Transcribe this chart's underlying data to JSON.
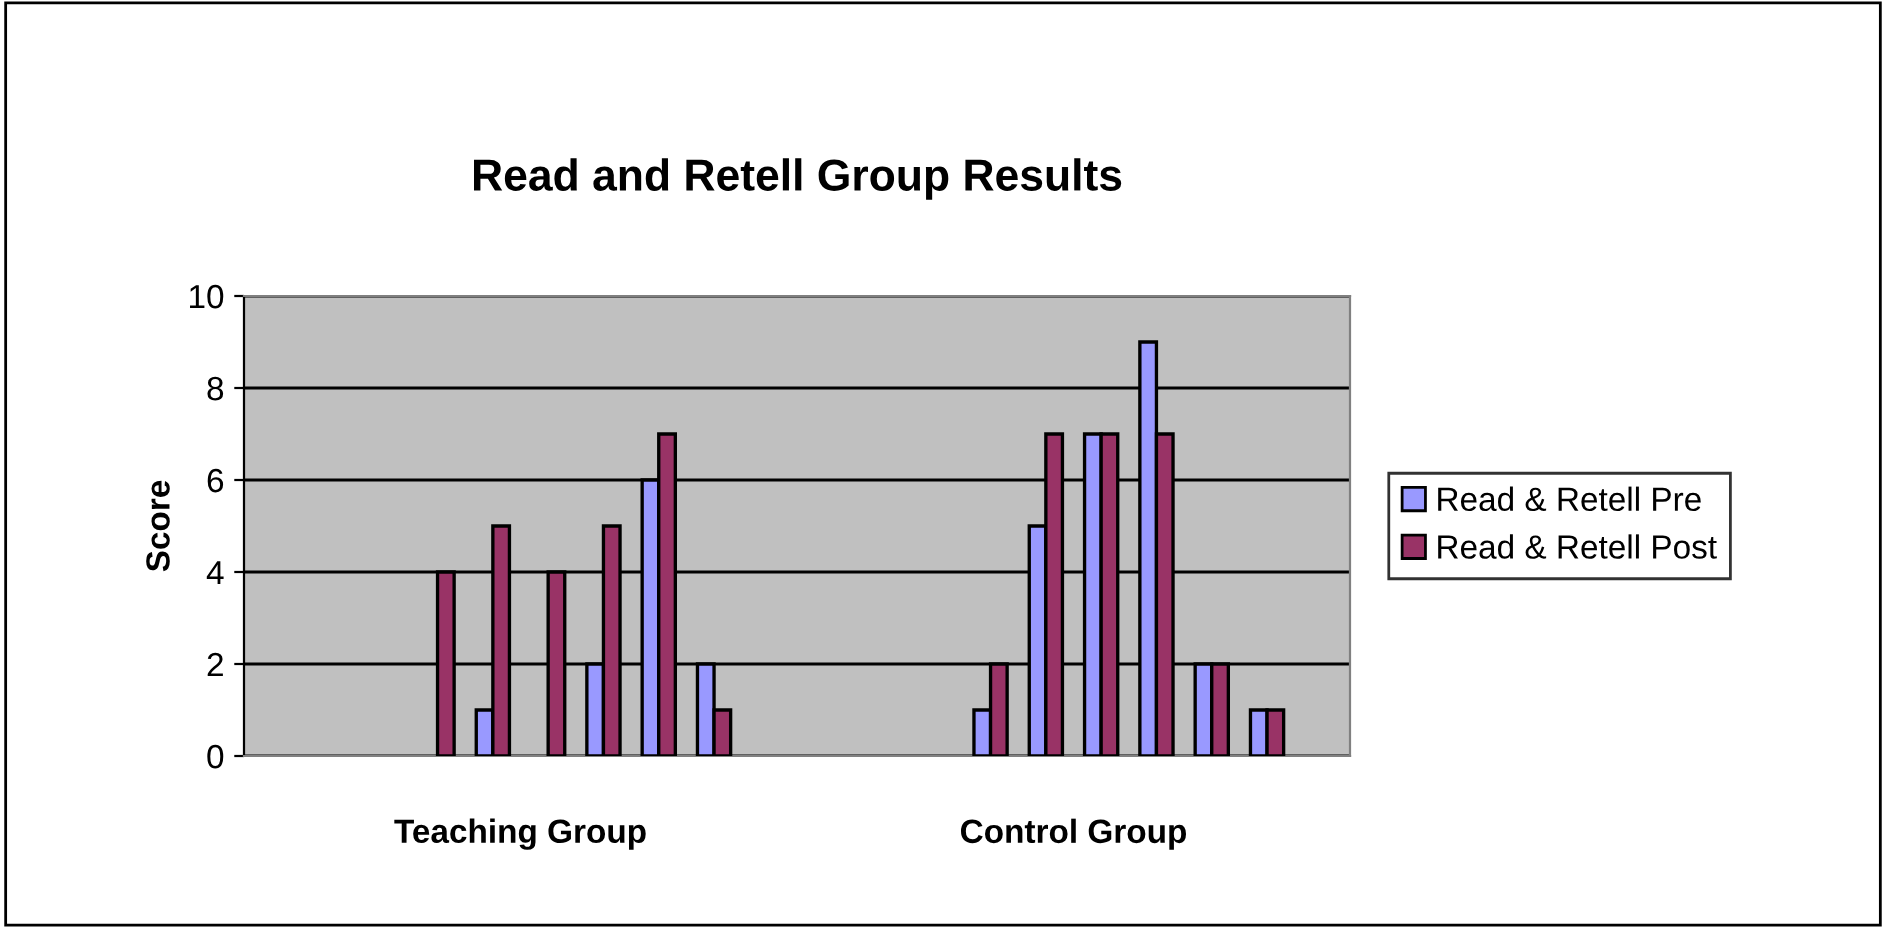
{
  "chart_data": {
    "type": "bar",
    "title": "Read and Retell Group Results",
    "ylabel": "Score",
    "categories": [
      null,
      null,
      null,
      null,
      null,
      null,
      null,
      null,
      null,
      null,
      null,
      null,
      null,
      null,
      null,
      null,
      null,
      null,
      null,
      null
    ],
    "annotations": [
      "Teaching Group",
      "Control Group"
    ],
    "series": [
      {
        "name": "Read & Retell Pre",
        "color": "#9999ff",
        "values": [
          null,
          null,
          null,
          null,
          1,
          null,
          2,
          6,
          2,
          null,
          null,
          null,
          null,
          1,
          5,
          7,
          9,
          2,
          1,
          null
        ]
      },
      {
        "name": "Read & Retell Post",
        "color": "#993366",
        "values": [
          null,
          null,
          null,
          4,
          5,
          4,
          5,
          7,
          1,
          null,
          null,
          null,
          null,
          2,
          7,
          7,
          7,
          2,
          1,
          null
        ]
      }
    ],
    "ylim": [
      0,
      10
    ],
    "yticks": [
      0,
      2,
      4,
      6,
      8,
      10
    ],
    "grid": "y",
    "legend": "right"
  }
}
